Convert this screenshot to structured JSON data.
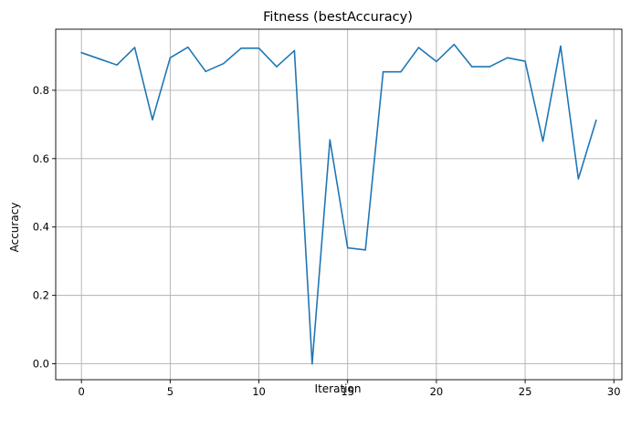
{
  "chart_data": {
    "type": "line",
    "title": "Fitness (bestAccuracy)",
    "xlabel": "Iteration",
    "ylabel": "Accuracy",
    "xlim": [
      -1.45,
      30.45
    ],
    "ylim": [
      -0.0466,
      0.9786
    ],
    "grid": true,
    "line_color": "#1f77b4",
    "grid_color": "#b0b0b0",
    "x_ticks": [
      {
        "value": 0,
        "label": "0"
      },
      {
        "value": 5,
        "label": "5"
      },
      {
        "value": 10,
        "label": "10"
      },
      {
        "value": 15,
        "label": "15"
      },
      {
        "value": 20,
        "label": "20"
      },
      {
        "value": 25,
        "label": "25"
      },
      {
        "value": 30,
        "label": "30"
      }
    ],
    "y_ticks": [
      {
        "value": 0.0,
        "label": "0.0"
      },
      {
        "value": 0.2,
        "label": "0.2"
      },
      {
        "value": 0.4,
        "label": "0.4"
      },
      {
        "value": 0.6,
        "label": "0.6"
      },
      {
        "value": 0.8,
        "label": "0.8"
      }
    ],
    "x": [
      0,
      1,
      2,
      3,
      4,
      5,
      6,
      7,
      8,
      9,
      10,
      11,
      12,
      13,
      14,
      15,
      16,
      17,
      18,
      19,
      20,
      21,
      22,
      23,
      24,
      25,
      26,
      27,
      28,
      29
    ],
    "y": [
      0.91,
      0.892,
      0.874,
      0.925,
      0.714,
      0.895,
      0.926,
      0.855,
      0.878,
      0.923,
      0.923,
      0.869,
      0.916,
      0.0,
      0.655,
      0.339,
      0.333,
      0.854,
      0.854,
      0.925,
      0.884,
      0.934,
      0.869,
      0.869,
      0.895,
      0.885,
      0.651,
      0.929,
      0.541,
      0.712
    ]
  }
}
